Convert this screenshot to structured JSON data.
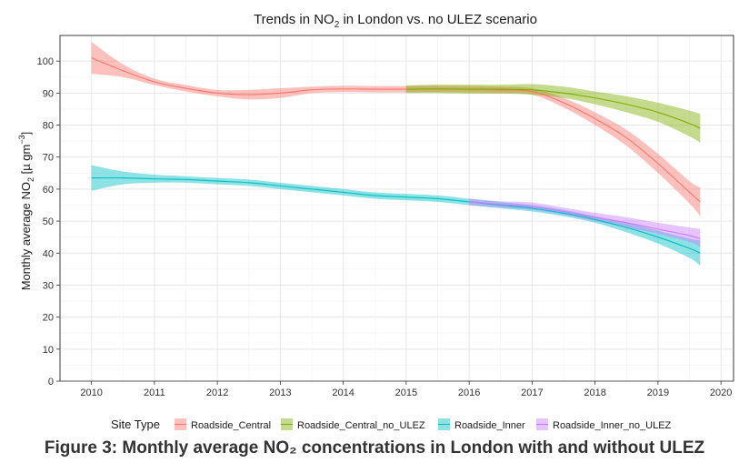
{
  "chart_data": {
    "type": "line",
    "title_parts": [
      "Trends in NO",
      "2",
      " in London vs. no ULEZ scenario"
    ],
    "ylabel_parts": [
      "Monthly average NO",
      "2",
      " [µ gm",
      "−3",
      "]"
    ],
    "xlabel": "",
    "xlim": [
      2009.5,
      2020.2
    ],
    "ylim": [
      0,
      108
    ],
    "x_ticks": [
      2010,
      2011,
      2012,
      2013,
      2014,
      2015,
      2016,
      2017,
      2018,
      2019,
      2020
    ],
    "x_tick_labels": [
      "2010",
      "2011",
      "2012",
      "2013",
      "2014",
      "2015",
      "2016",
      "2017",
      "2018",
      "2019",
      "2020"
    ],
    "y_ticks": [
      0,
      10,
      20,
      30,
      40,
      50,
      60,
      70,
      80,
      90,
      100
    ],
    "y_tick_labels": [
      "0",
      "10",
      "20",
      "30",
      "40",
      "50",
      "60",
      "70",
      "80",
      "90",
      "100"
    ],
    "grid": true,
    "legend_title": "Site Type",
    "legend_position": "bottom",
    "series": [
      {
        "name": "Roadside_Central",
        "color": "#F8766D",
        "x": [
          2010,
          2010.5,
          2011,
          2011.5,
          2012,
          2012.5,
          2013,
          2013.5,
          2014,
          2014.5,
          2015,
          2015.5,
          2016,
          2016.5,
          2017,
          2017.5,
          2018,
          2018.5,
          2019,
          2019.5,
          2019.67
        ],
        "y": [
          101,
          97,
          93.5,
          91.5,
          90,
          89.5,
          90,
          91,
          91.3,
          91.2,
          91.2,
          91.3,
          91.2,
          91,
          90.5,
          87,
          82,
          76,
          68,
          59,
          56
        ],
        "lower": [
          96,
          95,
          92.5,
          90.5,
          89,
          88,
          88.5,
          90,
          90.3,
          90.2,
          90.2,
          90.3,
          90.2,
          90,
          89.5,
          85.5,
          80,
          73.5,
          65,
          55.5,
          51.5
        ],
        "upper": [
          106,
          99,
          94.5,
          92.5,
          91,
          91,
          91.5,
          92,
          92.3,
          92.2,
          92.2,
          92.3,
          92.2,
          92,
          91.5,
          88.5,
          84,
          78.5,
          71,
          62.5,
          60.5
        ]
      },
      {
        "name": "Roadside_Central_no_ULEZ",
        "color": "#7CAE00",
        "x": [
          2015,
          2015.5,
          2016,
          2016.5,
          2017,
          2017.5,
          2018,
          2018.5,
          2019,
          2019.5,
          2019.67
        ],
        "y": [
          91.2,
          91.3,
          91.2,
          91.2,
          91,
          90,
          88.5,
          86.5,
          84,
          80.5,
          79
        ],
        "lower": [
          90,
          90,
          89.8,
          89.8,
          89.5,
          88.5,
          86.5,
          84,
          81,
          76.5,
          74.5
        ],
        "upper": [
          92.4,
          92.6,
          92.6,
          92.6,
          92.8,
          92,
          90.5,
          89,
          87,
          84.5,
          83.5
        ]
      },
      {
        "name": "Roadside_Inner",
        "color": "#00BFC4",
        "x": [
          2010,
          2010.5,
          2011,
          2011.5,
          2012,
          2012.5,
          2013,
          2013.5,
          2014,
          2014.5,
          2015,
          2015.5,
          2016,
          2016.5,
          2017,
          2017.5,
          2018,
          2018.5,
          2019,
          2019.5,
          2019.67
        ],
        "y": [
          63.5,
          63.5,
          63.2,
          63,
          62.5,
          62,
          61,
          60,
          59,
          58,
          57.5,
          57,
          56,
          55,
          54,
          52.5,
          50.5,
          48,
          45,
          41.5,
          40
        ],
        "lower": [
          59.5,
          61.5,
          62,
          62,
          61.5,
          61,
          60,
          59,
          58,
          57,
          56.5,
          56,
          55,
          54,
          53,
          51.5,
          49.5,
          46.5,
          43,
          38.5,
          36
        ],
        "upper": [
          67.5,
          65.5,
          64.5,
          64,
          63.5,
          63,
          62,
          61,
          60,
          59,
          58.5,
          58,
          57,
          56,
          55,
          53.5,
          51.5,
          49.5,
          47,
          44.5,
          44
        ]
      },
      {
        "name": "Roadside_Inner_no_ULEZ",
        "color": "#C77CFF",
        "x": [
          2016,
          2016.5,
          2017,
          2017.5,
          2018,
          2018.5,
          2019,
          2019.5,
          2019.67
        ],
        "y": [
          56,
          55.2,
          54.5,
          53,
          51.2,
          49.5,
          47.5,
          45.5,
          44.5
        ],
        "lower": [
          55,
          54.2,
          53.5,
          52,
          50,
          48,
          46,
          43.5,
          42
        ],
        "upper": [
          57,
          56.2,
          55.8,
          54.2,
          52.6,
          51.2,
          49.5,
          48,
          47.5
        ]
      }
    ]
  },
  "caption": {
    "text": "Figure 3: Monthly average NO₂ concentrations in London with and without ULEZ"
  }
}
